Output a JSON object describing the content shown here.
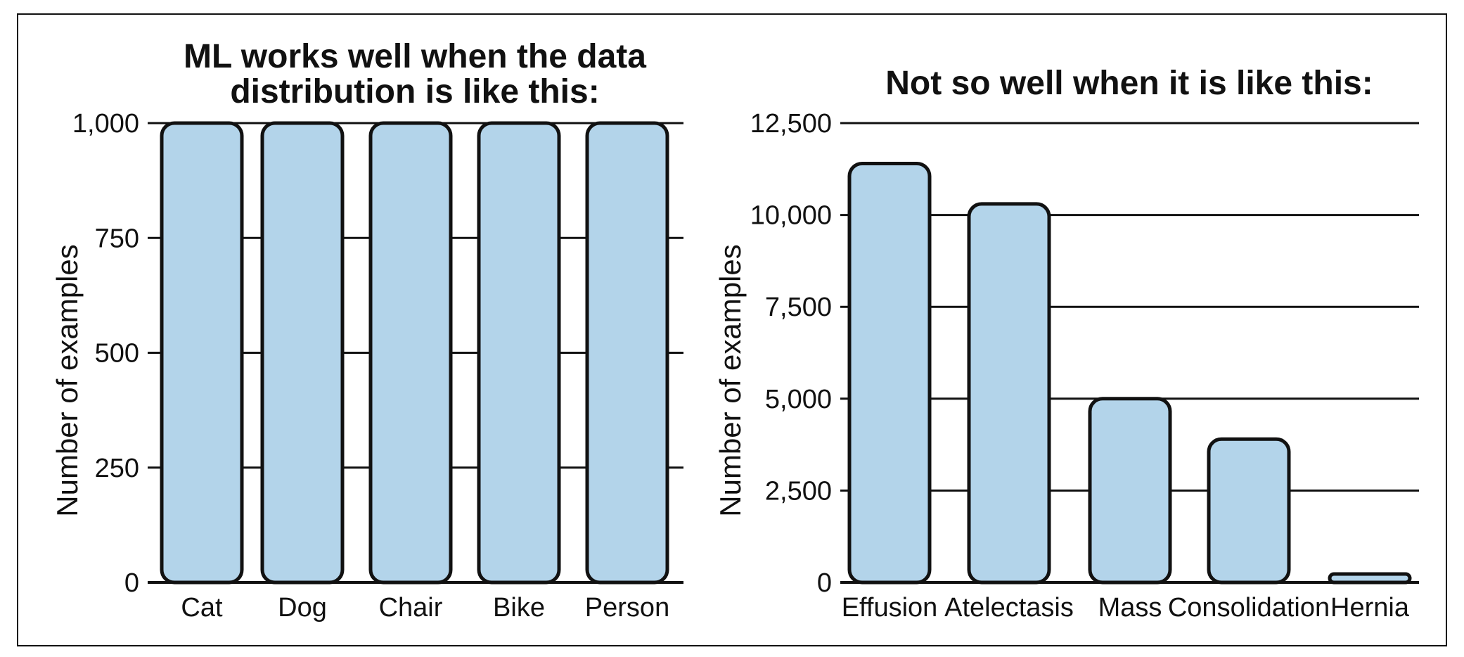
{
  "colors": {
    "bar_fill": "#b3d4ea",
    "bar_stroke": "#111111",
    "grid": "#111111",
    "frame": "#111111",
    "background": "#ffffff"
  },
  "chart_data": [
    {
      "type": "bar",
      "title_lines": [
        "ML works well when the data",
        "distribution is like this:"
      ],
      "xlabel": "",
      "ylabel": "Number of examples",
      "categories": [
        "Cat",
        "Dog",
        "Chair",
        "Bike",
        "Person"
      ],
      "values": [
        1000,
        1000,
        1000,
        1000,
        1000
      ],
      "ylim": [
        0,
        1000
      ],
      "yticks": [
        0,
        250,
        500,
        750,
        1000
      ],
      "ytick_labels": [
        "0",
        "250",
        "500",
        "750",
        "1,000"
      ],
      "grid": true,
      "legend": "none"
    },
    {
      "type": "bar",
      "title_lines": [
        "Not so well when it is like this:"
      ],
      "xlabel": "",
      "ylabel": "Number of examples",
      "categories": [
        "Effusion",
        "Atelectasis",
        "Mass",
        "Consolidation",
        "Hernia"
      ],
      "values": [
        11400,
        10300,
        5000,
        3900,
        150
      ],
      "ylim": [
        0,
        12500
      ],
      "yticks": [
        0,
        2500,
        5000,
        7500,
        10000,
        12500
      ],
      "ytick_labels": [
        "0",
        "2,500",
        "5,000",
        "7,500",
        "10,000",
        "12,500"
      ],
      "grid": true,
      "legend": "none"
    }
  ]
}
